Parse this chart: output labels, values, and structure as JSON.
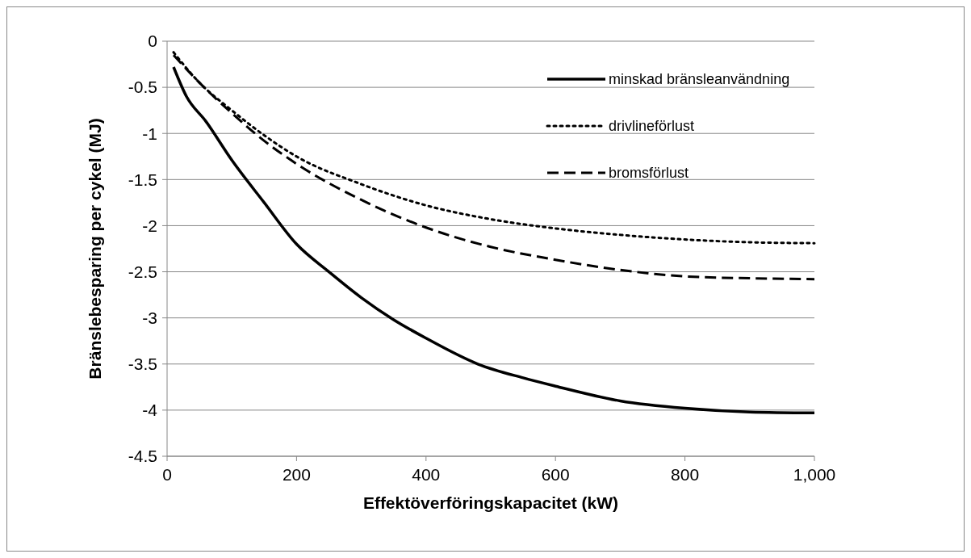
{
  "chart_data": {
    "type": "line",
    "xlabel": "Effektöverföringskapacitet (kW)",
    "ylabel": "Bränslebesparing per cykel (MJ)",
    "xlim": [
      0,
      1000
    ],
    "xticks": [
      0,
      200,
      400,
      600,
      800,
      {
        "value": 1000,
        "label": "1,000"
      }
    ],
    "ylim": [
      -4.5,
      0
    ],
    "yticks": [
      -4.5,
      -4,
      -3.5,
      -3,
      -2.5,
      -2,
      -1.5,
      -1,
      -0.5,
      0
    ],
    "grid": "y",
    "legend": "top right",
    "series": [
      {
        "name": "minskad bränsleanvändning",
        "color": "#000000",
        "line_style": "solid",
        "x": [
          10,
          30,
          60,
          100,
          150,
          200,
          250,
          300,
          350,
          400,
          480,
          550,
          600,
          700,
          800,
          900,
          1000
        ],
        "values": [
          -0.28,
          -0.6,
          -0.87,
          -1.29,
          -1.75,
          -2.2,
          -2.5,
          -2.78,
          -3.02,
          -3.22,
          -3.5,
          -3.65,
          -3.74,
          -3.9,
          -3.98,
          -4.02,
          -4.03
        ]
      },
      {
        "name": "drivlineförlust",
        "color": "#000000",
        "line_style": "dotted",
        "x": [
          10,
          50,
          100,
          150,
          200,
          300,
          400,
          500,
          600,
          700,
          800,
          900,
          1000
        ],
        "values": [
          -0.12,
          -0.45,
          -0.75,
          -1.02,
          -1.25,
          -1.55,
          -1.78,
          -1.93,
          -2.03,
          -2.1,
          -2.15,
          -2.18,
          -2.19
        ]
      },
      {
        "name": "bromsförlust",
        "color": "#000000",
        "line_style": "dashed",
        "x": [
          10,
          50,
          100,
          150,
          200,
          300,
          400,
          500,
          600,
          700,
          800,
          900,
          1000
        ],
        "values": [
          -0.15,
          -0.45,
          -0.78,
          -1.08,
          -1.33,
          -1.72,
          -2.02,
          -2.23,
          -2.37,
          -2.48,
          -2.55,
          -2.57,
          -2.58
        ]
      }
    ]
  }
}
